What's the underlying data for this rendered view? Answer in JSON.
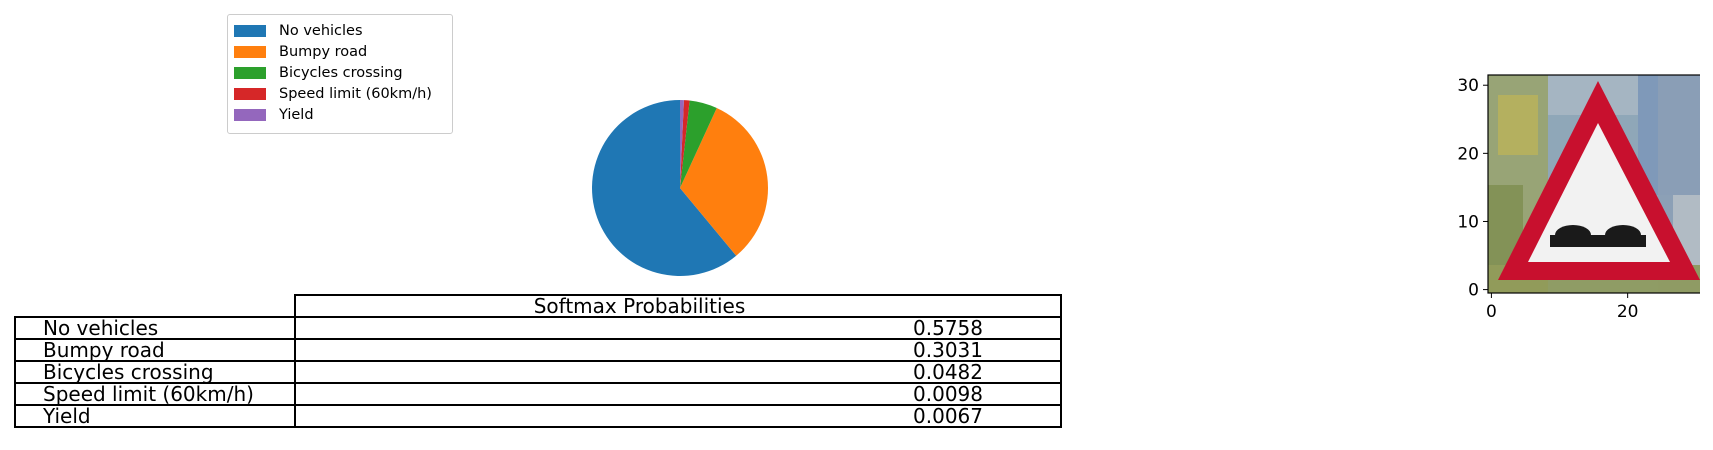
{
  "chart_data": [
    {
      "type": "pie",
      "categories": [
        "No vehicles",
        "Bumpy road",
        "Bicycles crossing",
        "Speed limit (60km/h)",
        "Yield"
      ],
      "values": [
        0.5758,
        0.3031,
        0.0482,
        0.0098,
        0.0067
      ],
      "colors": [
        "#1f77b4",
        "#ff7f0e",
        "#2ca02c",
        "#d62728",
        "#9467bd"
      ],
      "legend": "top-left"
    },
    {
      "type": "table",
      "header": "Softmax Probabilities",
      "rows": [
        {
          "label": "No vehicles",
          "value": "0.5758"
        },
        {
          "label": "Bumpy road",
          "value": "0.3031"
        },
        {
          "label": "Bicycles crossing",
          "value": "0.0482"
        },
        {
          "label": "Speed limit (60km/h)",
          "value": "0.0098"
        },
        {
          "label": "Yield",
          "value": "0.0067"
        }
      ]
    },
    {
      "type": "image",
      "description_icon": "bumpy-road-warning-sign",
      "x_ticks": [
        "0",
        "20"
      ],
      "y_ticks": [
        "0",
        "10",
        "20",
        "30"
      ],
      "xlim": [
        -0.5,
        31.5
      ],
      "ylim": [
        31.5,
        -0.5
      ]
    }
  ]
}
